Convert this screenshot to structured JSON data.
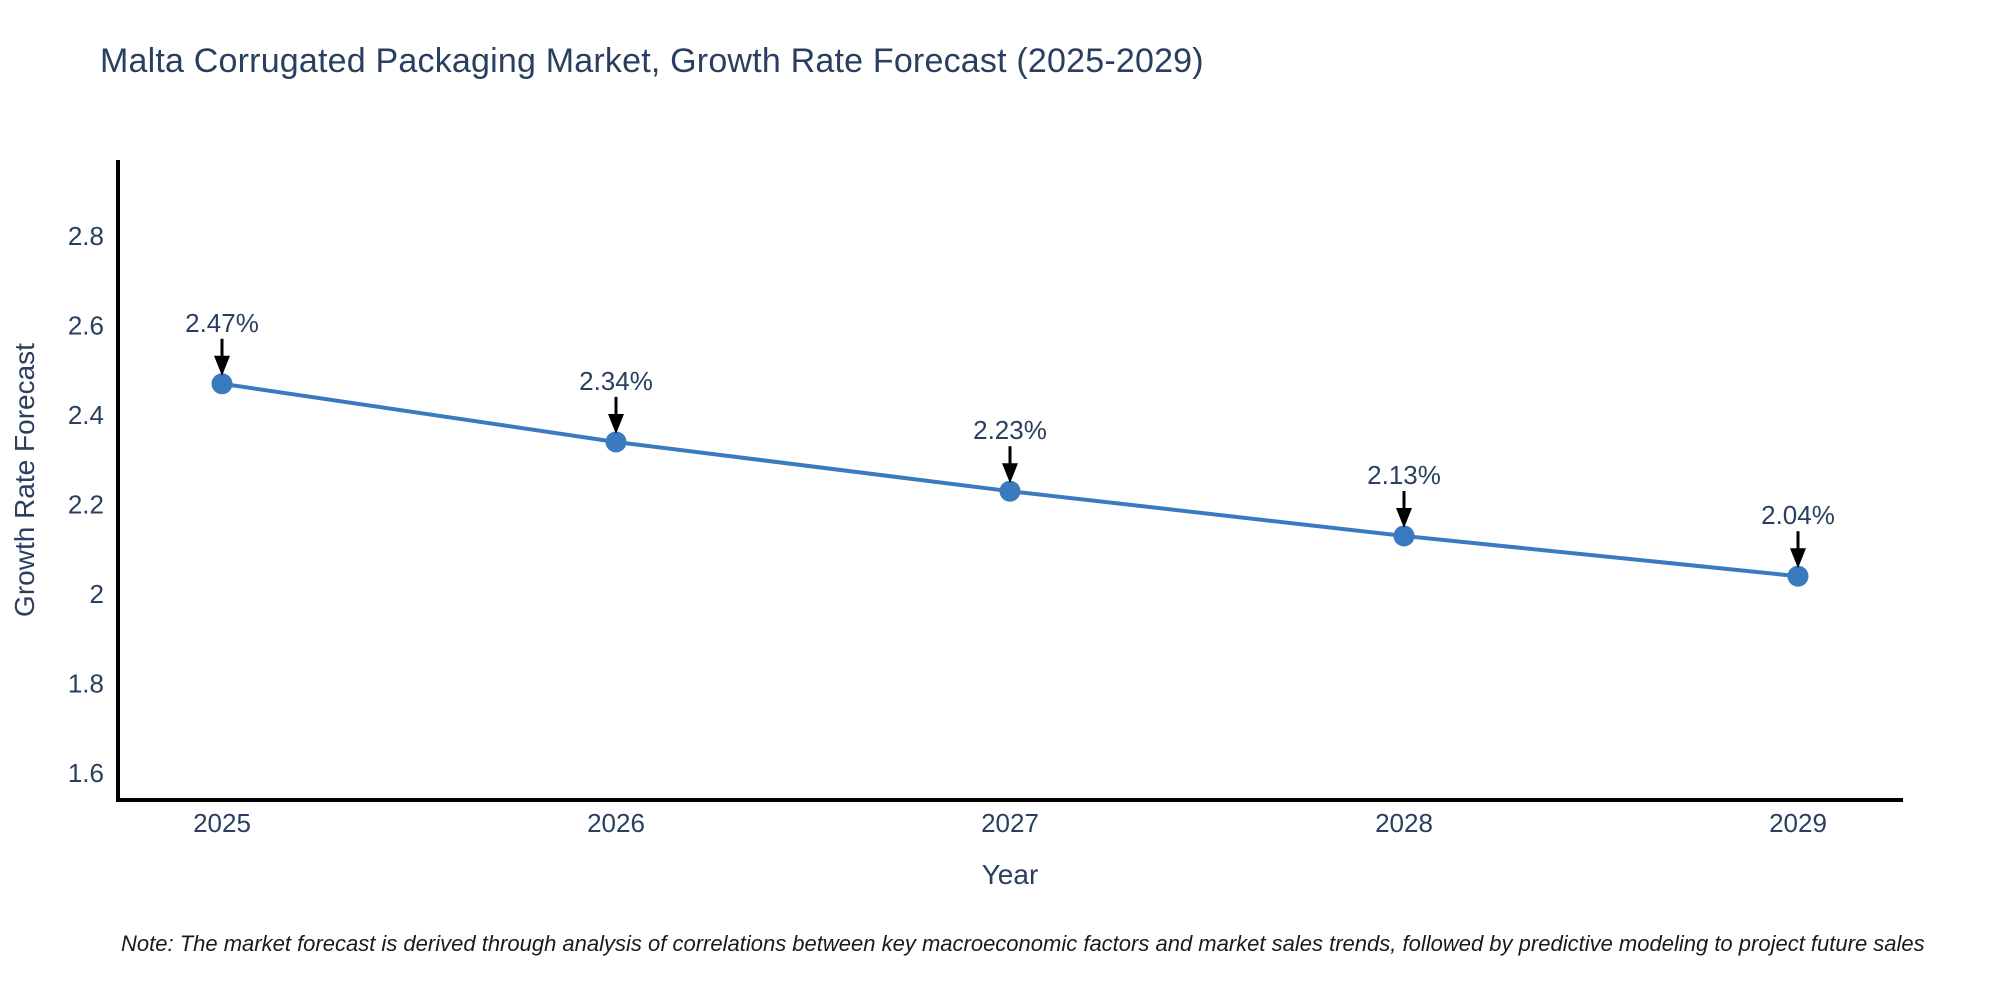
{
  "title": "Malta Corrugated Packaging Market, Growth Rate Forecast (2025-2029)",
  "note": "Note: The market forecast is derived through analysis of correlations between key macroeconomic factors and market sales trends, followed by predictive modeling to project future sales",
  "chart_data": {
    "type": "line",
    "x": [
      "2025",
      "2026",
      "2027",
      "2028",
      "2029"
    ],
    "series": [
      {
        "name": "Growth Rate Forecast",
        "values": [
          2.47,
          2.34,
          2.23,
          2.13,
          2.04
        ]
      }
    ],
    "point_labels": [
      "2.47%",
      "2.34%",
      "2.23%",
      "2.13%",
      "2.04%"
    ],
    "xlabel": "Year",
    "ylabel": "Growth Rate Forecast",
    "ytick_values": [
      1.6,
      1.8,
      2.0,
      2.2,
      2.4,
      2.6,
      2.8
    ],
    "ytick_labels": [
      "1.6",
      "1.8",
      "2",
      "2.2",
      "2.4",
      "2.6",
      "2.8"
    ],
    "ylim": [
      1.54,
      2.97
    ],
    "grid": false,
    "legend": "none",
    "annotations": "value labels with downward arrows above each point",
    "colors": {
      "line": "#3a7abf",
      "marker": "#3a7abf",
      "axis": "#000000",
      "tick_text": "#2a3f5f",
      "title_text": "#2a3f5f",
      "annotation_text": "#2a3f5f",
      "arrow": "#000000",
      "background": "#ffffff"
    }
  }
}
